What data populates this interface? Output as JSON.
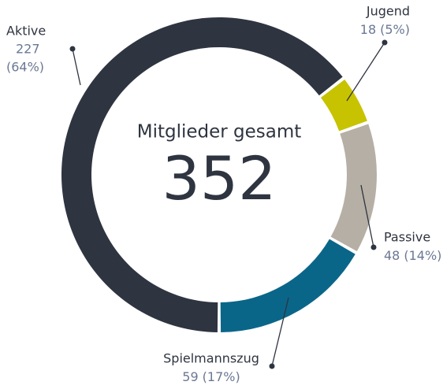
{
  "chart_data": {
    "type": "donut",
    "title": "Mitglieder gesamt",
    "total": 352,
    "categories": [
      "Aktive",
      "Jugend",
      "Passive",
      "Spielmannszug"
    ],
    "values": [
      227,
      18,
      48,
      59
    ],
    "percent_labels": [
      "(64%)",
      "(5%)",
      "(14%)",
      "(17%)"
    ],
    "colors": [
      "#2e3440",
      "#c7c300",
      "#b6afa5",
      "#0a6689"
    ]
  }
}
